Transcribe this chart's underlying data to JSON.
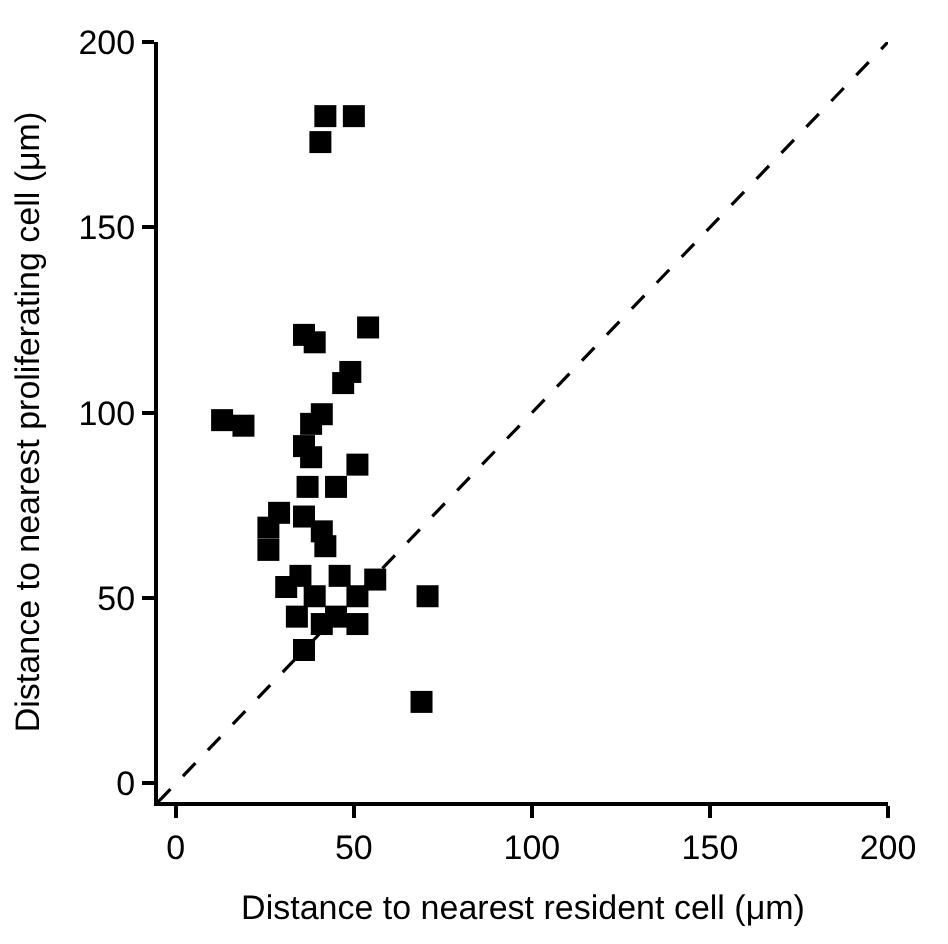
{
  "chart_data": {
    "type": "scatter",
    "xlabel": "Distance to nearest resident cell (μm)",
    "ylabel": "Distance to nearest proliferating cell (μm)",
    "xlim": [
      -5,
      200
    ],
    "ylim": [
      -5,
      200
    ],
    "xticks": [
      0,
      50,
      100,
      150,
      200
    ],
    "yticks": [
      0,
      50,
      100,
      150,
      200
    ],
    "marker": "square",
    "series": [
      {
        "color": "#000000",
        "x": [
          42,
          50,
          40.6,
          36,
          39,
          54,
          49,
          47,
          13,
          19,
          41,
          38,
          36,
          38,
          51,
          45,
          37,
          29,
          26,
          26,
          36,
          41,
          42,
          31,
          35,
          39,
          46,
          51,
          56,
          51,
          41,
          36,
          34,
          45,
          70.7,
          69
        ],
        "values": [
          180,
          180,
          173,
          121,
          119,
          123,
          111,
          108,
          98,
          96.5,
          99.6,
          97,
          91,
          88,
          86,
          80,
          80,
          73,
          69,
          63,
          72,
          68,
          64,
          53,
          56,
          50.5,
          56,
          50.5,
          55,
          43,
          43,
          36,
          45,
          45,
          50.5,
          22
        ]
      },
      {
        "type": "line",
        "color": "#000000",
        "line_style": "dashed",
        "marker": "none",
        "x": [
          -5,
          200
        ],
        "values": [
          -5,
          200
        ]
      }
    ]
  }
}
